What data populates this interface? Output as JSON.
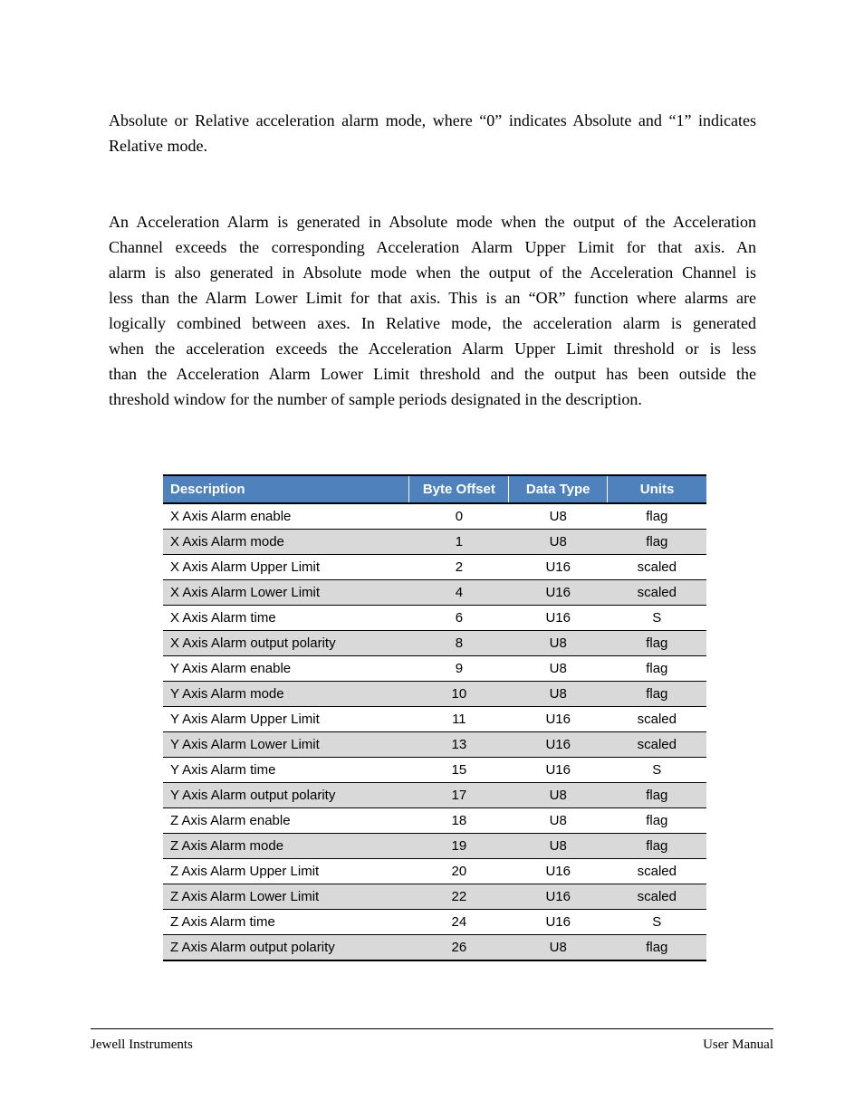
{
  "paragraph1": {
    "line1": "Absolute or Relative acceleration alarm mode, where “0” indicates Absolute and “1” indicates",
    "line2": "Relative mode."
  },
  "paragraph2": {
    "l1": "An Acceleration Alarm is generated in Absolute mode when the output of the Acceleration",
    "l2": "Channel exceeds the corresponding Acceleration Alarm Upper Limit for that axis. An",
    "l3": "alarm is also generated in Absolute mode when the output of the Acceleration Channel is",
    "l4": "less than the Alarm Lower Limit for that axis. This is an “OR” function where alarms are",
    "l5": "logically combined between axes. In Relative mode, the acceleration alarm is generated",
    "l6": "when the acceleration exceeds the Acceleration Alarm Upper Limit threshold or is less",
    "l7": "than the Acceleration Alarm Lower Limit threshold and the output has been outside the",
    "l8": "threshold window for the number of sample periods designated in the description."
  },
  "table": {
    "header_bg": "#4f81bd",
    "header_fg": "#ffffff",
    "row_even_bg": "#ffffff",
    "row_odd_bg": "#d9d9d9",
    "border_color": "#000000",
    "columns": [
      "Description",
      "Byte Offset",
      "Data Type",
      "Units"
    ],
    "rows": [
      [
        "X Axis Alarm enable",
        "0",
        "U8",
        "flag"
      ],
      [
        "X Axis Alarm mode",
        "1",
        "U8",
        "flag"
      ],
      [
        "X Axis Alarm Upper Limit",
        "2",
        "U16",
        "scaled"
      ],
      [
        "X Axis Alarm Lower Limit",
        "4",
        "U16",
        "scaled"
      ],
      [
        "X Axis Alarm time",
        "6",
        "U16",
        "S"
      ],
      [
        "X Axis Alarm output polarity",
        "8",
        "U8",
        "flag"
      ],
      [
        "Y Axis Alarm enable",
        "9",
        "U8",
        "flag"
      ],
      [
        "Y Axis Alarm mode",
        "10",
        "U8",
        "flag"
      ],
      [
        "Y Axis Alarm Upper Limit",
        "11",
        "U16",
        "scaled"
      ],
      [
        "Y Axis Alarm Lower Limit",
        "13",
        "U16",
        "scaled"
      ],
      [
        "Y Axis Alarm time",
        "15",
        "U16",
        "S"
      ],
      [
        "Y Axis Alarm output polarity",
        "17",
        "U8",
        "flag"
      ],
      [
        "Z Axis Alarm enable",
        "18",
        "U8",
        "flag"
      ],
      [
        "Z Axis Alarm mode",
        "19",
        "U8",
        "flag"
      ],
      [
        "Z Axis Alarm Upper Limit",
        "20",
        "U16",
        "scaled"
      ],
      [
        "Z Axis Alarm Lower Limit",
        "22",
        "U16",
        "scaled"
      ],
      [
        "Z Axis Alarm time",
        "24",
        "U16",
        "S"
      ],
      [
        "Z Axis Alarm output polarity",
        "26",
        "U8",
        "flag"
      ]
    ]
  },
  "footer": {
    "left": "Jewell Instruments",
    "right": "User Manual"
  }
}
